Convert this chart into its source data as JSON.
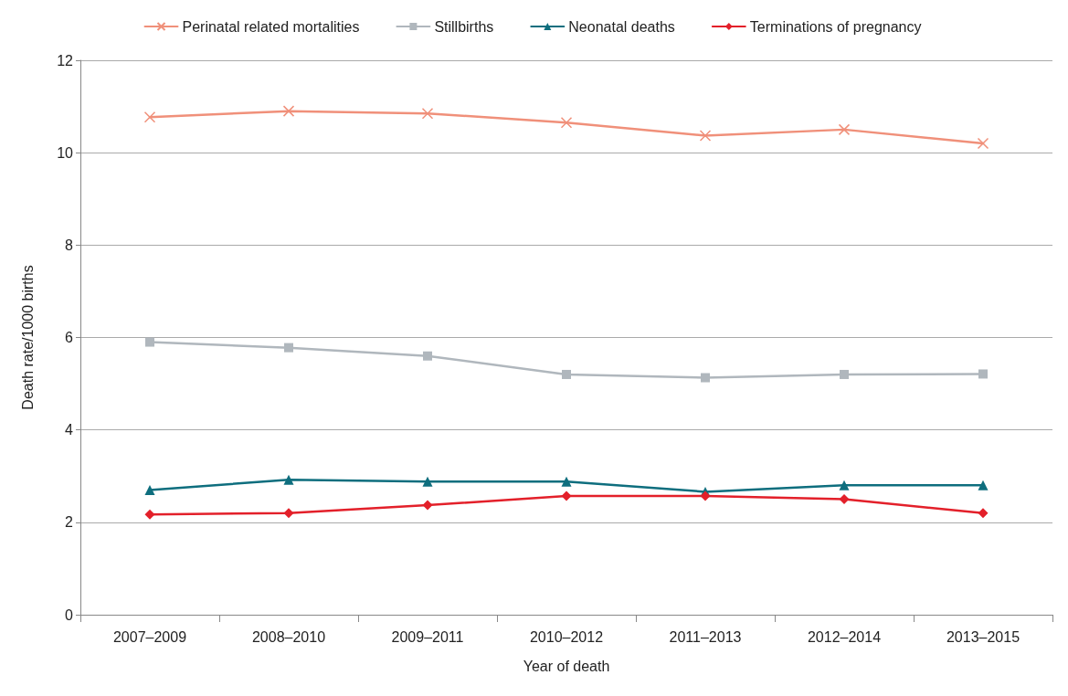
{
  "chart_data": {
    "type": "line",
    "xlabel": "Year of death",
    "ylabel": "Death rate/1000 births",
    "categories": [
      "2007–2009",
      "2008–2010",
      "2009–2011",
      "2010–2012",
      "2011–2013",
      "2012–2014",
      "2013–2015"
    ],
    "series": [
      {
        "name": "Perinatal related mortalities",
        "color": "#f0907a",
        "marker": "cross",
        "values": [
          10.77,
          10.9,
          10.85,
          10.65,
          10.37,
          10.5,
          10.2
        ]
      },
      {
        "name": "Stillbirths",
        "color": "#b0b7bd",
        "marker": "square",
        "values": [
          5.9,
          5.78,
          5.6,
          5.2,
          5.13,
          5.2,
          5.21
        ]
      },
      {
        "name": "Neonatal deaths",
        "color": "#0e6e7e",
        "marker": "triangle",
        "values": [
          2.7,
          2.92,
          2.88,
          2.88,
          2.66,
          2.8,
          2.8
        ]
      },
      {
        "name": "Terminations of pregnancy",
        "color": "#e3202a",
        "marker": "diamond",
        "values": [
          2.17,
          2.2,
          2.37,
          2.57,
          2.57,
          2.5,
          2.2
        ]
      }
    ],
    "ylim": [
      0,
      12
    ],
    "yticks": [
      0,
      2,
      4,
      6,
      8,
      10,
      12
    ],
    "grid": "y",
    "legend": "top"
  }
}
